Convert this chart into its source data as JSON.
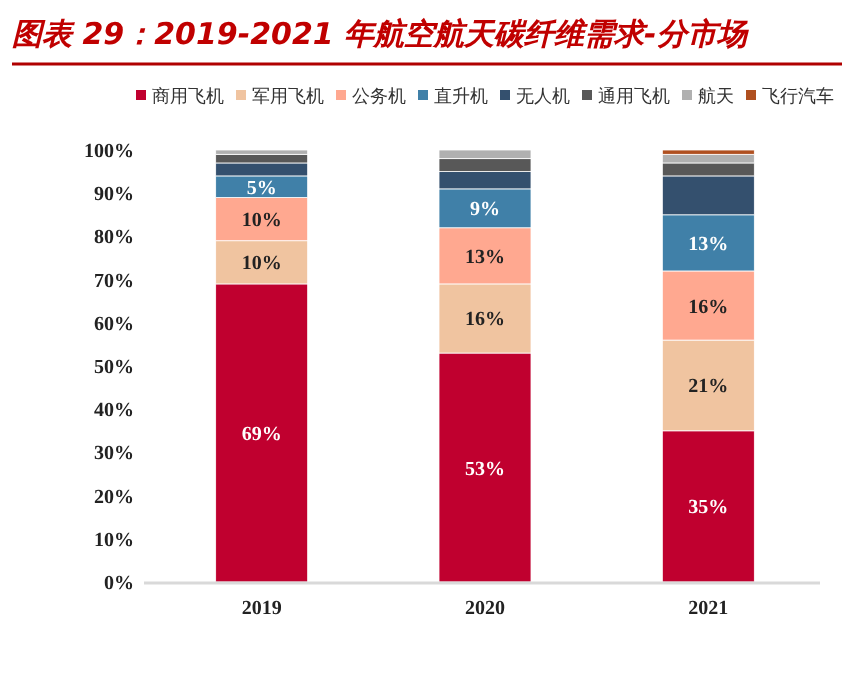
{
  "chart_data": {
    "type": "bar",
    "stacked": true,
    "title": "图表 29：2019-2021 年航空航天碳纤维需求-分市场",
    "categories": [
      "2019",
      "2020",
      "2021"
    ],
    "series": [
      {
        "name": "商用飞机",
        "color": "#c0002f",
        "values": [
          69,
          53,
          35
        ],
        "value_labels": [
          "69%",
          "53%",
          "35%"
        ]
      },
      {
        "name": "军用飞机",
        "color": "#f0c4a0",
        "values": [
          10,
          16,
          21
        ],
        "value_labels": [
          "10%",
          "16%",
          "21%"
        ]
      },
      {
        "name": "公务机",
        "color": "#ffa890",
        "values": [
          10,
          13,
          16
        ],
        "value_labels": [
          "10%",
          "13%",
          "16%"
        ]
      },
      {
        "name": "直升机",
        "color": "#4080a8",
        "values": [
          5,
          9,
          13
        ],
        "value_labels": [
          "5%",
          "9%",
          "13%"
        ]
      },
      {
        "name": "无人机",
        "color": "#34506e",
        "values": [
          3,
          4,
          9
        ]
      },
      {
        "name": "通用飞机",
        "color": "#585858",
        "values": [
          2,
          3,
          3
        ]
      },
      {
        "name": "航天",
        "color": "#b0b0b0",
        "values": [
          1,
          2,
          2
        ]
      },
      {
        "name": "飞行汽车",
        "color": "#b05020",
        "values": [
          0,
          0,
          1
        ]
      }
    ],
    "ylim": [
      0,
      100
    ],
    "yticks": [
      {
        "value": 0,
        "label": "0%"
      },
      {
        "value": 10,
        "label": "10%"
      },
      {
        "value": 20,
        "label": "20%"
      },
      {
        "value": 30,
        "label": "30%"
      },
      {
        "value": 40,
        "label": "40%"
      },
      {
        "value": 50,
        "label": "50%"
      },
      {
        "value": 60,
        "label": "60%"
      },
      {
        "value": 70,
        "label": "70%"
      },
      {
        "value": 80,
        "label": "80%"
      },
      {
        "value": 90,
        "label": "90%"
      },
      {
        "value": 100,
        "label": "100%"
      }
    ],
    "legend": "top",
    "grid": false
  }
}
